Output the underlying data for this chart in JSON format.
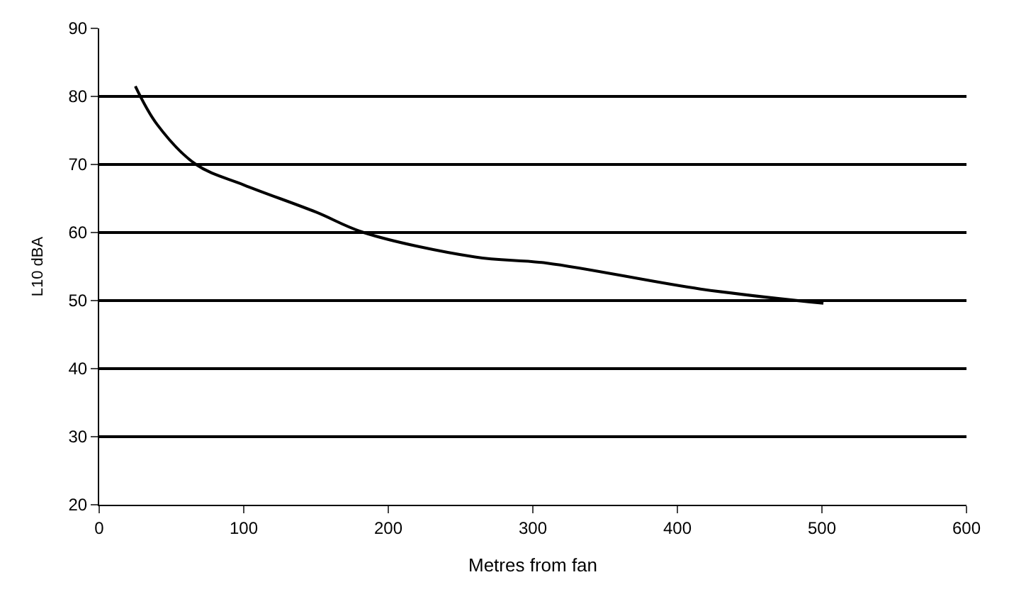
{
  "chart_data": {
    "type": "line",
    "xlabel": "Metres from fan",
    "ylabel": "L10 dBA",
    "series": [
      {
        "color": "#000000",
        "x": [
          25,
          40,
          67,
          100,
          150,
          183,
          260,
          310,
          416,
          501
        ],
        "values": [
          81.5,
          75.9,
          70,
          67,
          63,
          60,
          56.4,
          55.5,
          51.7,
          49.6
        ]
      }
    ],
    "xlim": [
      0,
      600
    ],
    "xticks": [
      0,
      100,
      200,
      300,
      400,
      500,
      600
    ],
    "ylim": [
      20,
      90
    ],
    "yticks": [
      20,
      30,
      40,
      50,
      60,
      70,
      80,
      90
    ],
    "grid": "y",
    "legend": false,
    "marker": "none",
    "line_style": "solid"
  }
}
